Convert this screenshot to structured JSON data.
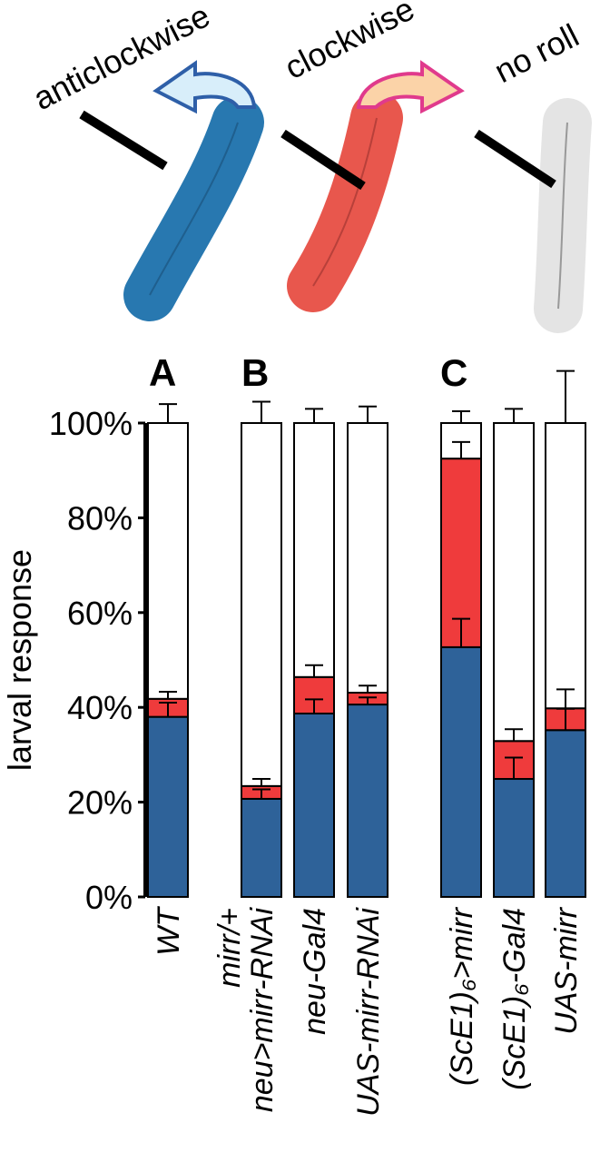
{
  "chart_data": {
    "type": "stacked_bar",
    "ylabel": "larval response",
    "panel_labels": [
      "A",
      "B",
      "C"
    ],
    "categories": [
      [
        "WT"
      ],
      [
        "mirr/+",
        "neu>mirr-RNAi"
      ],
      [
        "neu-Gal4"
      ],
      [
        "UAS-mirr-RNAi"
      ],
      [
        "(ScE1)₆>mirr"
      ],
      [
        "(ScE1)₆-Gal4"
      ],
      [
        "UAS-mirr"
      ]
    ],
    "series": [
      {
        "name": "anticlockwise",
        "color": "#2e6299",
        "values": [
          38,
          20.7,
          38.7,
          40.6,
          52.7,
          24.9,
          35.2
        ],
        "errors": [
          3,
          2,
          3,
          1.5,
          6,
          4.5,
          4.5
        ]
      },
      {
        "name": "clockwise",
        "color": "#ef3b3c",
        "values": [
          3.8,
          2.7,
          7.7,
          2.5,
          39.8,
          8,
          4.6
        ],
        "errors": [
          1.5,
          1.5,
          2.5,
          1.5,
          3.5,
          2.5,
          4
        ]
      },
      {
        "name": "no roll",
        "color": "#ffffff",
        "values": [
          58.2,
          76.6,
          53.6,
          56.9,
          7.5,
          67.1,
          60.2
        ],
        "errors": [
          4,
          4.5,
          3,
          3.5,
          2.5,
          3,
          11
        ]
      }
    ],
    "ylim": [
      0,
      100
    ],
    "yticks": [
      {
        "value": 0,
        "label": "0%"
      },
      {
        "value": 20,
        "label": "20%"
      },
      {
        "value": 40,
        "label": "40%"
      },
      {
        "value": 60,
        "label": "60%"
      },
      {
        "value": 80,
        "label": "80%"
      },
      {
        "value": 100,
        "label": "100%"
      }
    ]
  }
}
